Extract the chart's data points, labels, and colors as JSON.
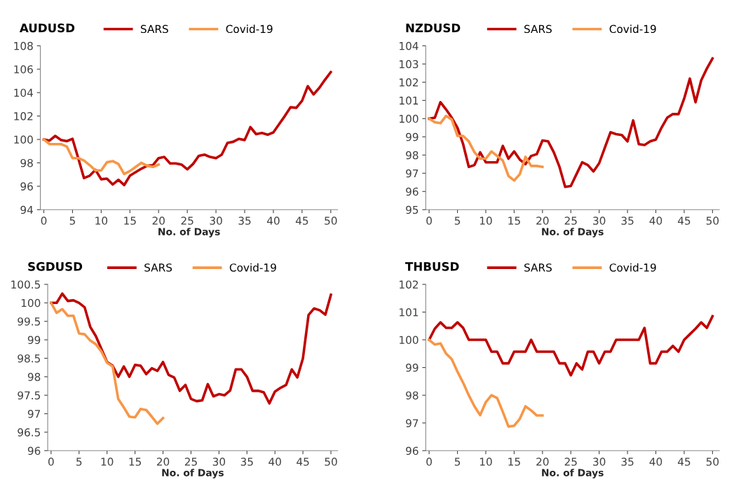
{
  "chart_data": [
    {
      "type": "line",
      "title": "AUDUSD",
      "xlabel": "No. of Days",
      "legend": "top",
      "grid": false,
      "marker": "none",
      "line_style": "solid",
      "x": [
        0,
        1,
        2,
        3,
        4,
        5,
        6,
        7,
        8,
        9,
        10,
        11,
        12,
        13,
        14,
        15,
        16,
        17,
        18,
        19,
        20,
        21,
        22,
        23,
        24,
        25,
        26,
        27,
        28,
        29,
        30,
        31,
        32,
        33,
        34,
        35,
        36,
        37,
        38,
        39,
        40,
        41,
        42,
        43,
        44,
        45,
        46,
        47,
        48,
        49,
        50
      ],
      "xlim": [
        -0.6,
        51.2
      ],
      "xticks": [
        0,
        5,
        10,
        15,
        20,
        25,
        30,
        35,
        40,
        45,
        50
      ],
      "ylim": [
        94,
        108
      ],
      "yticks": [
        94,
        96,
        98,
        100,
        102,
        104,
        106,
        108
      ],
      "series": [
        {
          "name": "SARS",
          "color": "#c00000",
          "values": [
            100,
            99.9,
            100.3,
            99.95,
            99.85,
            100.05,
            98.4,
            96.7,
            96.9,
            97.4,
            96.6,
            96.65,
            96.15,
            96.55,
            96.1,
            96.9,
            97.2,
            97.5,
            97.75,
            97.8,
            98.4,
            98.5,
            97.95,
            97.95,
            97.85,
            97.45,
            97.9,
            98.6,
            98.7,
            98.5,
            98.4,
            98.7,
            99.7,
            99.8,
            100.05,
            99.95,
            101.05,
            100.45,
            100.55,
            100.4,
            100.6,
            101.3,
            102,
            102.75,
            102.7,
            103.3,
            104.55,
            103.85,
            104.4,
            105.1,
            105.75
          ]
        },
        {
          "name": "Covid-19",
          "color": "#f79646",
          "x": [
            0,
            1,
            2,
            3,
            4,
            5,
            6,
            7,
            8,
            9,
            10,
            11,
            12,
            13,
            14,
            15,
            16,
            17,
            18,
            19,
            20
          ],
          "values": [
            100,
            99.6,
            99.6,
            99.6,
            99.4,
            98.4,
            98.4,
            98.2,
            97.8,
            97.35,
            97.35,
            98.05,
            98.15,
            97.9,
            97.05,
            97.3,
            97.65,
            98.0,
            97.75,
            97.65,
            97.85
          ]
        }
      ]
    },
    {
      "type": "line",
      "title": "NZDUSD",
      "xlabel": "No. of Days",
      "legend": "top",
      "grid": false,
      "marker": "none",
      "line_style": "solid",
      "x": [
        0,
        1,
        2,
        3,
        4,
        5,
        6,
        7,
        8,
        9,
        10,
        11,
        12,
        13,
        14,
        15,
        16,
        17,
        18,
        19,
        20,
        21,
        22,
        23,
        24,
        25,
        26,
        27,
        28,
        29,
        30,
        31,
        32,
        33,
        34,
        35,
        36,
        37,
        38,
        39,
        40,
        41,
        42,
        43,
        44,
        45,
        46,
        47,
        48,
        49,
        50
      ],
      "xlim": [
        -0.6,
        51.2
      ],
      "xticks": [
        0,
        5,
        10,
        15,
        20,
        25,
        30,
        35,
        40,
        45,
        50
      ],
      "ylim": [
        95,
        104
      ],
      "yticks": [
        95,
        96,
        97,
        98,
        99,
        100,
        101,
        102,
        103,
        104
      ],
      "series": [
        {
          "name": "SARS",
          "color": "#c00000",
          "values": [
            100,
            100.05,
            100.9,
            100.5,
            100.05,
            99.5,
            98.6,
            97.35,
            97.45,
            98.15,
            97.6,
            97.6,
            97.6,
            98.5,
            97.8,
            98.2,
            97.75,
            97.5,
            97.95,
            98.05,
            98.8,
            98.75,
            98.15,
            97.35,
            96.25,
            96.3,
            96.95,
            97.6,
            97.45,
            97.1,
            97.55,
            98.4,
            99.25,
            99.15,
            99.1,
            98.75,
            99.9,
            98.6,
            98.55,
            98.75,
            98.85,
            99.5,
            100.05,
            100.25,
            100.25,
            101.1,
            102.2,
            100.9,
            102.1,
            102.75,
            103.3
          ]
        },
        {
          "name": "Covid-19",
          "color": "#f79646",
          "x": [
            0,
            1,
            2,
            3,
            4,
            5,
            6,
            7,
            8,
            9,
            10,
            11,
            12,
            13,
            14,
            15,
            16,
            17,
            18,
            19,
            20
          ],
          "values": [
            100,
            99.8,
            99.75,
            100.15,
            99.95,
            99.05,
            99.05,
            98.75,
            98.15,
            97.8,
            97.8,
            98.2,
            97.95,
            97.7,
            96.85,
            96.6,
            96.95,
            97.9,
            97.4,
            97.4,
            97.35
          ]
        }
      ]
    },
    {
      "type": "line",
      "title": "SGDUSD",
      "xlabel": "No. of Days",
      "legend": "top",
      "grid": false,
      "marker": "none",
      "line_style": "solid",
      "x": [
        0,
        1,
        2,
        3,
        4,
        5,
        6,
        7,
        8,
        9,
        10,
        11,
        12,
        13,
        14,
        15,
        16,
        17,
        18,
        19,
        20,
        21,
        22,
        23,
        24,
        25,
        26,
        27,
        28,
        29,
        30,
        31,
        32,
        33,
        34,
        35,
        36,
        37,
        38,
        39,
        40,
        41,
        42,
        43,
        44,
        45,
        46,
        47,
        48,
        49,
        50
      ],
      "xlim": [
        -0.6,
        51.2
      ],
      "xticks": [
        0,
        5,
        10,
        15,
        20,
        25,
        30,
        35,
        40,
        45,
        50
      ],
      "ylim": [
        96,
        100.5
      ],
      "yticks": [
        96,
        96.5,
        97,
        97.5,
        98,
        98.5,
        99,
        99.5,
        100,
        100.5
      ],
      "series": [
        {
          "name": "SARS",
          "color": "#c00000",
          "values": [
            100,
            100,
            100.25,
            100.05,
            100.07,
            100,
            99.88,
            99.35,
            99.1,
            98.75,
            98.4,
            98.3,
            98.0,
            98.28,
            98.0,
            98.32,
            98.3,
            98.07,
            98.23,
            98.16,
            98.4,
            98.05,
            97.98,
            97.62,
            97.78,
            97.4,
            97.34,
            97.36,
            97.8,
            97.47,
            97.53,
            97.5,
            97.63,
            98.2,
            98.2,
            98.0,
            97.62,
            97.62,
            97.58,
            97.28,
            97.6,
            97.7,
            97.78,
            98.2,
            97.98,
            98.5,
            99.67,
            99.85,
            99.8,
            99.68,
            100.22
          ]
        },
        {
          "name": "Covid-19",
          "color": "#f79646",
          "x": [
            0,
            1,
            2,
            3,
            4,
            5,
            6,
            7,
            8,
            9,
            10,
            11,
            12,
            13,
            14,
            15,
            16,
            17,
            18,
            19,
            20
          ],
          "values": [
            100,
            99.73,
            99.83,
            99.65,
            99.65,
            99.17,
            99.15,
            98.98,
            98.88,
            98.68,
            98.38,
            98.28,
            97.4,
            97.17,
            96.92,
            96.9,
            97.13,
            97.1,
            96.92,
            96.73,
            96.88
          ]
        }
      ]
    },
    {
      "type": "line",
      "title": "THBUSD",
      "xlabel": "No. of Days",
      "legend": "top",
      "grid": false,
      "marker": "none",
      "line_style": "solid",
      "x": [
        0,
        1,
        2,
        3,
        4,
        5,
        6,
        7,
        8,
        9,
        10,
        11,
        12,
        13,
        14,
        15,
        16,
        17,
        18,
        19,
        20,
        21,
        22,
        23,
        24,
        25,
        26,
        27,
        28,
        29,
        30,
        31,
        32,
        33,
        34,
        35,
        36,
        37,
        38,
        39,
        40,
        41,
        42,
        43,
        44,
        45,
        46,
        47,
        48,
        49,
        50
      ],
      "xlim": [
        -0.6,
        51.2
      ],
      "xticks": [
        0,
        5,
        10,
        15,
        20,
        25,
        30,
        35,
        40,
        45,
        50
      ],
      "ylim": [
        96,
        102
      ],
      "yticks": [
        96,
        97,
        98,
        99,
        100,
        101,
        102
      ],
      "series": [
        {
          "name": "SARS",
          "color": "#c00000",
          "values": [
            100,
            100.4,
            100.63,
            100.43,
            100.43,
            100.63,
            100.43,
            100,
            100,
            100,
            100,
            99.57,
            99.57,
            99.15,
            99.15,
            99.57,
            99.57,
            99.57,
            100,
            99.57,
            99.57,
            99.57,
            99.57,
            99.15,
            99.15,
            98.72,
            99.15,
            98.93,
            99.57,
            99.57,
            99.15,
            99.57,
            99.57,
            100,
            100,
            100,
            100,
            100,
            100.43,
            99.15,
            99.15,
            99.57,
            99.57,
            99.78,
            99.57,
            100,
            100.2,
            100.4,
            100.63,
            100.43,
            100.85
          ]
        },
        {
          "name": "Covid-19",
          "color": "#f79646",
          "x": [
            0,
            1,
            2,
            3,
            4,
            5,
            6,
            7,
            8,
            9,
            10,
            11,
            12,
            13,
            14,
            15,
            16,
            17,
            18,
            19,
            20
          ],
          "values": [
            100,
            99.83,
            99.87,
            99.5,
            99.3,
            98.85,
            98.45,
            98.0,
            97.6,
            97.28,
            97.75,
            98.0,
            97.9,
            97.4,
            96.87,
            96.9,
            97.15,
            97.6,
            97.45,
            97.27,
            97.27
          ]
        }
      ]
    }
  ]
}
